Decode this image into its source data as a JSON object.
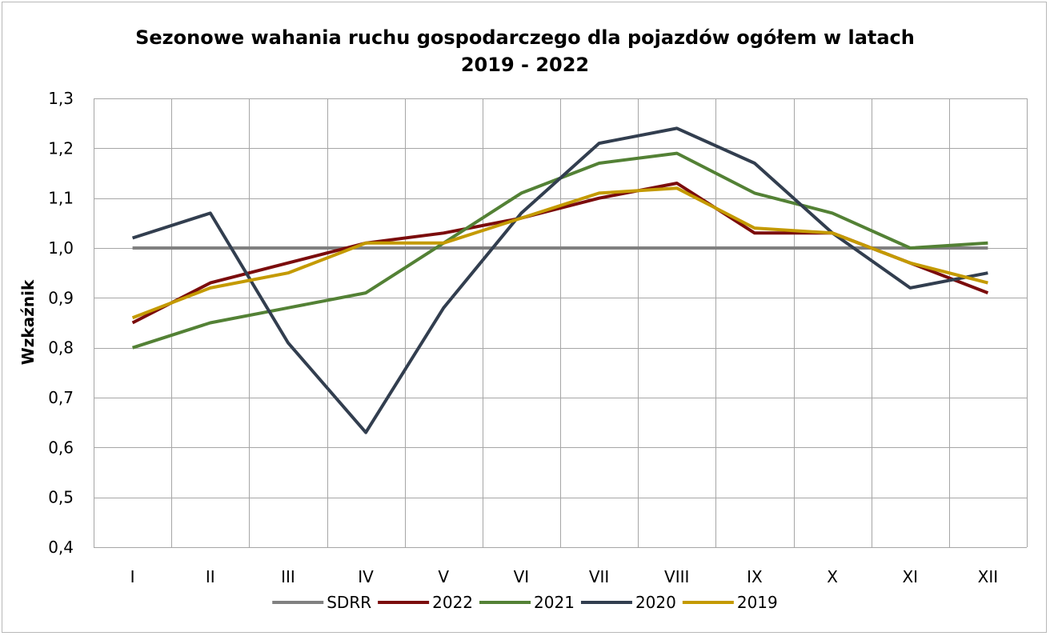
{
  "chart_data": {
    "type": "line",
    "title_line1": "Sezonowe wahania ruchu gospodarczego dla pojazdów ogółem w latach",
    "title_line2": "2019 - 2022",
    "xlabel": "",
    "ylabel": "Wzkaźnik",
    "ylim": [
      0.4,
      1.3
    ],
    "ystep": 0.1,
    "ytick_labels": [
      "0,4",
      "0,5",
      "0,6",
      "0,7",
      "0,8",
      "0,9",
      "1,0",
      "1,1",
      "1,2",
      "1,3"
    ],
    "grid": true,
    "legend_position": "bottom",
    "categories": [
      "I",
      "II",
      "III",
      "IV",
      "V",
      "VI",
      "VII",
      "VIII",
      "IX",
      "X",
      "XI",
      "XII"
    ],
    "series": [
      {
        "name": "SDRR",
        "color": "#808080",
        "values": [
          1.0,
          1.0,
          1.0,
          1.0,
          1.0,
          1.0,
          1.0,
          1.0,
          1.0,
          1.0,
          1.0,
          1.0
        ]
      },
      {
        "name": "2022",
        "color": "#7b0c0c",
        "values": [
          0.85,
          0.93,
          0.97,
          1.01,
          1.03,
          1.06,
          1.1,
          1.13,
          1.03,
          1.03,
          0.97,
          0.91
        ]
      },
      {
        "name": "2021",
        "color": "#538135",
        "values": [
          0.8,
          0.85,
          0.88,
          0.91,
          1.01,
          1.11,
          1.17,
          1.19,
          1.11,
          1.07,
          1.0,
          1.01
        ]
      },
      {
        "name": "2020",
        "color": "#323e4f",
        "values": [
          1.02,
          1.07,
          0.81,
          0.63,
          0.88,
          1.07,
          1.21,
          1.24,
          1.17,
          1.03,
          0.92,
          0.95
        ]
      },
      {
        "name": "2019",
        "color": "#c49a00",
        "values": [
          0.86,
          0.92,
          0.95,
          1.01,
          1.01,
          1.06,
          1.11,
          1.12,
          1.04,
          1.03,
          0.97,
          0.93
        ]
      }
    ]
  }
}
